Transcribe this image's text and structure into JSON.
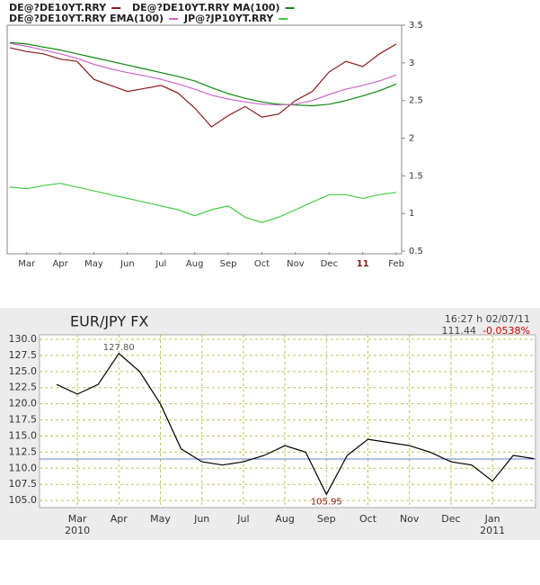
{
  "chart_data": [
    {
      "type": "line",
      "categories": [
        null,
        "Mar",
        null,
        "Apr",
        null,
        "May",
        null,
        "Jun",
        null,
        "Jul",
        null,
        "Aug",
        null,
        "Sep",
        null,
        "Oct",
        null,
        "Nov",
        null,
        "Dec",
        null,
        "11",
        null,
        "Feb"
      ],
      "highlight_category": {
        "index": 21,
        "color": "#8b1a1a"
      },
      "series": [
        {
          "name": "DE@?DE10YT.RRY",
          "color": "#8b1a1a",
          "values": [
            3.2,
            3.15,
            3.12,
            3.05,
            3.02,
            2.78,
            2.7,
            2.62,
            2.66,
            2.7,
            2.6,
            2.4,
            2.15,
            2.3,
            2.42,
            2.28,
            2.32,
            2.5,
            2.62,
            2.88,
            3.02,
            2.95,
            3.12,
            3.25
          ]
        },
        {
          "name": "DE@?DE10YT.RRY MA(100)",
          "color": "#0a8a0a",
          "values": [
            3.27,
            3.25,
            3.21,
            3.17,
            3.12,
            3.07,
            3.02,
            2.97,
            2.92,
            2.87,
            2.82,
            2.76,
            2.67,
            2.59,
            2.53,
            2.48,
            2.45,
            2.44,
            2.43,
            2.45,
            2.5,
            2.56,
            2.63,
            2.72
          ]
        },
        {
          "name": "DE@?DE10YT.RRY EMA(100)",
          "color": "#cc66cc",
          "values": [
            3.26,
            3.22,
            3.17,
            3.12,
            3.06,
            2.98,
            2.92,
            2.87,
            2.83,
            2.78,
            2.72,
            2.65,
            2.57,
            2.52,
            2.48,
            2.45,
            2.44,
            2.45,
            2.5,
            2.58,
            2.65,
            2.7,
            2.76,
            2.84
          ]
        },
        {
          "name": "JP@?JP10YT.RRY",
          "color": "#44cc44",
          "values": [
            1.35,
            1.33,
            1.37,
            1.4,
            1.35,
            1.3,
            1.25,
            1.2,
            1.15,
            1.1,
            1.05,
            0.97,
            1.05,
            1.1,
            0.95,
            0.88,
            0.95,
            1.05,
            1.15,
            1.25,
            1.25,
            1.2,
            1.25,
            1.28
          ]
        }
      ],
      "ylim": [
        0.5,
        3.5
      ],
      "yticks": [
        0.5,
        1,
        1.5,
        2,
        2.5,
        3,
        3.5
      ],
      "grid": false
    },
    {
      "type": "line",
      "title": "EUR/JPY FX",
      "timestamp": "16:27 h 02/07/11",
      "last": {
        "value": 111.44,
        "label": "111.44"
      },
      "change": "-0.0538%",
      "categories": [
        null,
        "Mar",
        null,
        "Apr",
        null,
        "May",
        null,
        "Jun",
        null,
        "Jul",
        null,
        "Aug",
        null,
        "Sep",
        null,
        "Oct",
        null,
        "Nov",
        null,
        "Dec",
        null,
        "Jan",
        null,
        null
      ],
      "year_labels": [
        {
          "label": "2010",
          "index": 1
        },
        {
          "label": "2011",
          "index": 21
        }
      ],
      "series": [
        {
          "name": "EUR/JPY FX",
          "color": "#000000",
          "values": [
            123.0,
            121.5,
            123.0,
            127.8,
            125.0,
            120.0,
            113.0,
            111.0,
            110.5,
            111.0,
            112.0,
            113.5,
            112.5,
            105.95,
            112.0,
            114.5,
            114.0,
            113.5,
            112.5,
            111.0,
            110.5,
            108.0,
            112.0,
            111.5
          ],
          "value_labels": [
            null,
            null,
            null,
            "127.80",
            null,
            null,
            null,
            null,
            null,
            null,
            null,
            null,
            null,
            "105.95",
            null,
            null,
            null,
            null,
            null,
            null,
            null,
            null,
            null,
            null
          ]
        }
      ],
      "ylim": [
        103.9,
        130.7
      ],
      "yticks": [
        {
          "value": 105,
          "label": "105.0"
        },
        {
          "value": 107.5,
          "label": "107.5"
        },
        {
          "value": 110,
          "label": "110.0"
        },
        {
          "value": 112.5,
          "label": "112.5"
        },
        {
          "value": 115,
          "label": "115.0"
        },
        {
          "value": 117.5,
          "label": "117.5"
        },
        {
          "value": 120,
          "label": "120.0"
        },
        {
          "value": 122.5,
          "label": "122.5"
        },
        {
          "value": 125,
          "label": "125.0"
        },
        {
          "value": 127.5,
          "label": "127.5"
        },
        {
          "value": 130,
          "label": "130.0"
        }
      ],
      "grid": true
    }
  ]
}
